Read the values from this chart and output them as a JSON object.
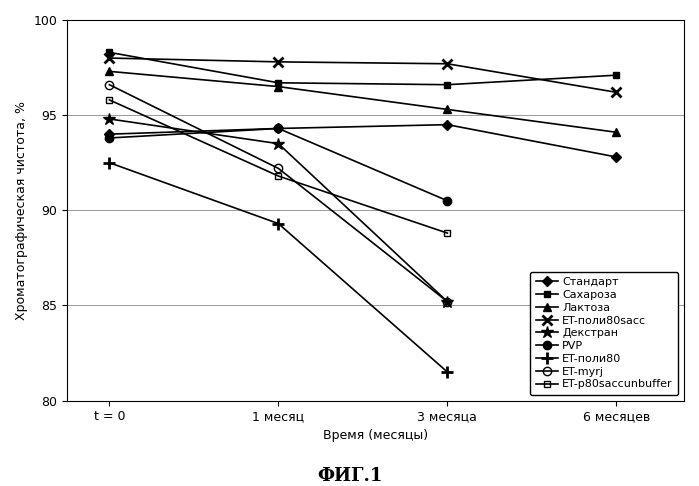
{
  "x_labels": [
    "t = 0",
    "1 месяц",
    "3 месяца",
    "6 месяцев"
  ],
  "x_positions": [
    0,
    1,
    2,
    3
  ],
  "series": [
    {
      "name": "Стандарт",
      "values": [
        94.0,
        94.3,
        94.5,
        92.8
      ],
      "marker": "D",
      "fillstyle": "full",
      "ms": 5,
      "mew": 1.0
    },
    {
      "name": "Сахароза",
      "values": [
        98.3,
        96.7,
        96.6,
        97.1
      ],
      "marker": "s",
      "fillstyle": "full",
      "ms": 5,
      "mew": 1.0
    },
    {
      "name": "Лактоза",
      "values": [
        97.3,
        96.5,
        95.3,
        94.1
      ],
      "marker": "^",
      "fillstyle": "full",
      "ms": 6,
      "mew": 1.0
    },
    {
      "name": "ET-поли80sacc",
      "values": [
        98.0,
        97.8,
        97.7,
        96.2
      ],
      "marker": "x",
      "fillstyle": "full",
      "ms": 7,
      "mew": 2.0
    },
    {
      "name": "Декстран",
      "values": [
        94.8,
        93.5,
        85.2,
        null
      ],
      "marker": "*",
      "fillstyle": "full",
      "ms": 9,
      "mew": 1.0
    },
    {
      "name": "PVP",
      "values": [
        93.8,
        94.3,
        90.5,
        null
      ],
      "marker": "o",
      "fillstyle": "full",
      "ms": 6,
      "mew": 1.0
    },
    {
      "name": "ET-поли80",
      "values": [
        92.5,
        89.3,
        81.5,
        null
      ],
      "marker": "+",
      "fillstyle": "full",
      "ms": 8,
      "mew": 2.0
    },
    {
      "name": "ET-myrj",
      "values": [
        96.6,
        92.2,
        85.2,
        null
      ],
      "marker": "o",
      "fillstyle": "none",
      "ms": 6,
      "mew": 1.0
    },
    {
      "name": "ET-p80saccunbuffer",
      "values": [
        95.8,
        91.8,
        88.8,
        null
      ],
      "marker": "s",
      "fillstyle": "none",
      "ms": 5,
      "mew": 1.0
    }
  ],
  "ylabel": "Хроматографическая чистота, %",
  "xlabel": "Время (месяцы)",
  "fig_title": "ФИГ.1",
  "ylim": [
    80,
    100
  ],
  "yticks": [
    80,
    85,
    90,
    95,
    100
  ],
  "xlim": [
    -0.25,
    3.4
  ],
  "legend_fontsize": 8,
  "axis_label_fontsize": 9,
  "tick_fontsize": 9,
  "title_fontsize": 13,
  "linewidth": 1.2,
  "grid_color": "#999999"
}
